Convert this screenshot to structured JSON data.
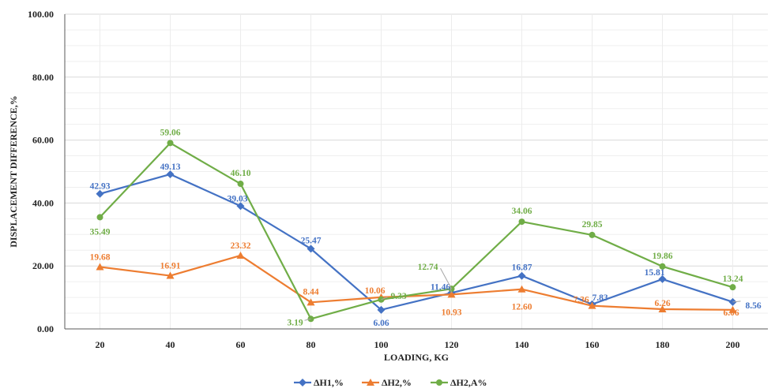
{
  "chart_data": {
    "type": "line",
    "xlabel": "LOADING, KG",
    "ylabel": "DISPLACEMENT DIFFERENCE,%",
    "x": [
      20,
      40,
      60,
      80,
      100,
      120,
      140,
      160,
      180,
      200
    ],
    "ylim": [
      0,
      100
    ],
    "yticks": [
      "0.00",
      "20.00",
      "40.00",
      "60.00",
      "80.00",
      "100.00"
    ],
    "grid": true,
    "legend_position": "bottom",
    "series": [
      {
        "name": "ΔH1,%",
        "color": "#4472C4",
        "marker": "diamond",
        "values": [
          42.93,
          49.13,
          39.03,
          25.47,
          6.06,
          11.46,
          16.87,
          7.83,
          15.81,
          8.56
        ],
        "labels": [
          "42.93",
          "49.13",
          "39.03",
          "25.47",
          "6.06",
          "11.46",
          "16.87",
          "7.83",
          "15.81",
          "8.56"
        ]
      },
      {
        "name": "ΔH2,%",
        "color": "#ED7D31",
        "marker": "triangle",
        "values": [
          19.68,
          16.91,
          23.32,
          8.44,
          10.06,
          10.93,
          12.6,
          7.36,
          6.26,
          6.06
        ],
        "labels": [
          "19.68",
          "16.91",
          "23.32",
          "8.44",
          "10.06",
          "10.93",
          "12.60",
          "7.36",
          "6.26",
          "6.06"
        ]
      },
      {
        "name": "ΔH2,A%",
        "color": "#70AD47",
        "marker": "circle",
        "values": [
          35.49,
          59.06,
          46.1,
          3.19,
          9.33,
          12.74,
          34.06,
          29.85,
          19.86,
          13.24
        ],
        "labels": [
          "35.49",
          "59.06",
          "46.10",
          "3.19",
          "9.33",
          "12.74",
          "34.06",
          "29.85",
          "19.86",
          "13.24"
        ]
      }
    ]
  }
}
